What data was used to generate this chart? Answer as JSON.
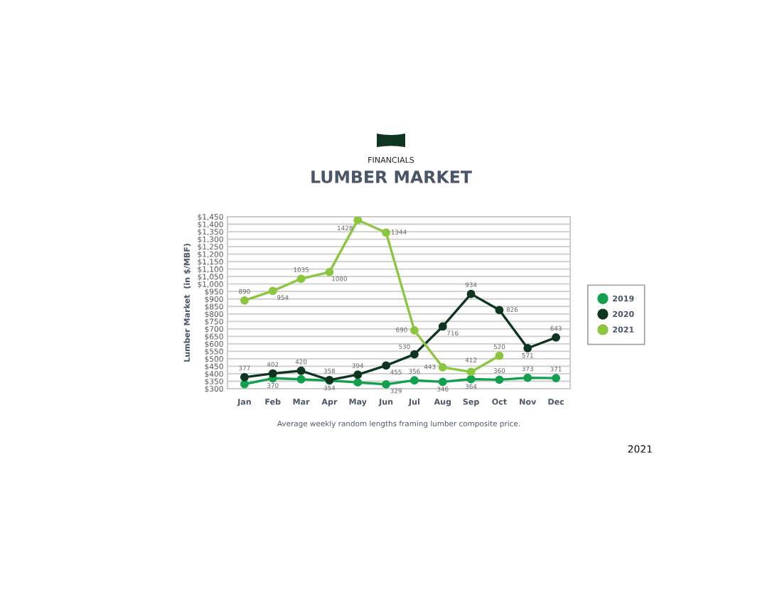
{
  "chart_data": {
    "type": "line",
    "subtitle": "FINANCIALS",
    "title": "LUMBER MARKET",
    "ylabel": "Lumber Market  (in $/MBF)",
    "categories": [
      "Jan",
      "Feb",
      "Mar",
      "Apr",
      "May",
      "Jun",
      "Jul",
      "Aug",
      "Sep",
      "Oct",
      "Nov",
      "Dec"
    ],
    "series": [
      {
        "name": "2019",
        "color": "#12a04f",
        "values": [
          330,
          370,
          363,
          354,
          342,
          329,
          356,
          346,
          364,
          360,
          373,
          371
        ],
        "value_labels": [
          null,
          "370",
          null,
          "354",
          null,
          "329",
          "356",
          "346",
          "364",
          "360",
          "373",
          "371"
        ]
      },
      {
        "name": "2020",
        "color": "#0d3520",
        "values": [
          377,
          402,
          420,
          358,
          394,
          455,
          530,
          716,
          934,
          826,
          571,
          643
        ],
        "value_labels": [
          "377",
          "402",
          "420",
          "358",
          "394",
          "455",
          "530",
          "716",
          "934",
          "826",
          "571",
          "643"
        ]
      },
      {
        "name": "2021",
        "color": "#8cc63f",
        "values": [
          890,
          954,
          1035,
          1080,
          1428,
          1344,
          690,
          443,
          412,
          520,
          null,
          null
        ],
        "value_labels": [
          "890",
          "954",
          "1035",
          "1080",
          "1428",
          "1344",
          "690",
          "443",
          "412",
          "520",
          null,
          null
        ]
      }
    ],
    "ylim": [
      300,
      1450
    ],
    "yticks": [
      {
        "value": 300,
        "label": "$300"
      },
      {
        "value": 350,
        "label": "$350"
      },
      {
        "value": 400,
        "label": "$400"
      },
      {
        "value": 450,
        "label": "$450"
      },
      {
        "value": 500,
        "label": "$500"
      },
      {
        "value": 550,
        "label": "$550"
      },
      {
        "value": 600,
        "label": "$600"
      },
      {
        "value": 650,
        "label": "$650"
      },
      {
        "value": 700,
        "label": "$700"
      },
      {
        "value": 750,
        "label": "$750"
      },
      {
        "value": 800,
        "label": "$800"
      },
      {
        "value": 850,
        "label": "$850"
      },
      {
        "value": 900,
        "label": "$900"
      },
      {
        "value": 950,
        "label": "$950"
      },
      {
        "value": 1000,
        "label": "$1,000"
      },
      {
        "value": 1050,
        "label": "$1,050"
      },
      {
        "value": 1100,
        "label": "$1,100"
      },
      {
        "value": 1150,
        "label": "$1,150"
      },
      {
        "value": 1200,
        "label": "$1,200"
      },
      {
        "value": 1250,
        "label": "$1,250"
      },
      {
        "value": 1300,
        "label": "$1,300"
      },
      {
        "value": 1350,
        "label": "$1,350"
      },
      {
        "value": 1400,
        "label": "$1,400"
      },
      {
        "value": 1450,
        "label": "$1,450"
      }
    ],
    "grid": "y",
    "legend": "right",
    "marker": "circle",
    "line_style": "solid",
    "annotations": [
      "Average weekly random lengths framing lumber composite price.",
      "2021"
    ]
  }
}
